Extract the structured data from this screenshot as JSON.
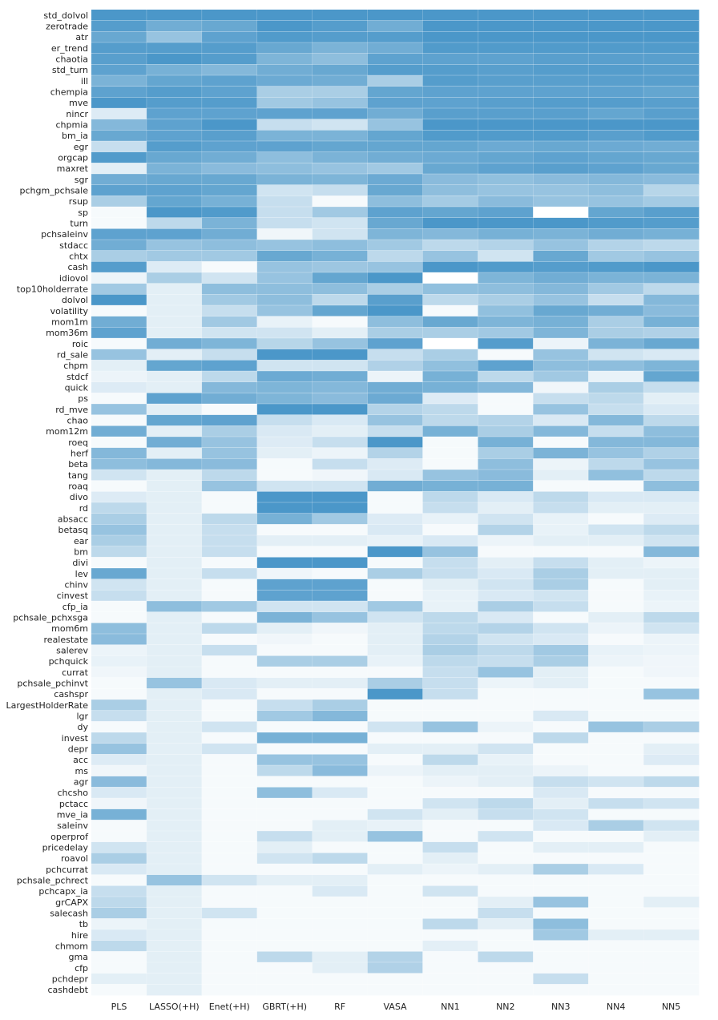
{
  "chart_data": {
    "type": "heatmap",
    "title": "",
    "xlabel": "",
    "ylabel": "",
    "colormap": {
      "low": "#ffffff",
      "high": "#4292c6"
    },
    "value_range": [
      0,
      1
    ],
    "columns": [
      "PLS",
      "LASSO(+H)",
      "Enet(+H)",
      "GBRT(+H)",
      "RF",
      "VASA",
      "NN1",
      "NN2",
      "NN3",
      "NN4",
      "NN5"
    ],
    "rows": [
      "std_dolvol",
      "zerotrade",
      "atr",
      "er_trend",
      "chaotia",
      "std_turn",
      "ill",
      "chempia",
      "mve",
      "nincr",
      "chpmia",
      "bm_ia",
      "egr",
      "orgcap",
      "maxret",
      "sgr",
      "pchgm_pchsale",
      "rsup",
      "sp",
      "turn",
      "pchsaleinv",
      "stdacc",
      "chtx",
      "cash",
      "idiovol",
      "top10holderrate",
      "dolvol",
      "volatility",
      "mom1m",
      "mom36m",
      "roic",
      "rd_sale",
      "chpm",
      "stdcf",
      "quick",
      "ps",
      "rd_mve",
      "chao",
      "mom12m",
      "roeq",
      "herf",
      "beta",
      "tang",
      "roaq",
      "divo",
      "rd",
      "absacc",
      "betasq",
      "ear",
      "bm",
      "divi",
      "lev",
      "chinv",
      "cinvest",
      "cfp_ia",
      "pchsale_pchxsga",
      "mom6m",
      "realestate",
      "salerev",
      "pchquick",
      "currat",
      "pchsale_pchinvt",
      "cashspr",
      "LargestHolderRate",
      "lgr",
      "dy",
      "invest",
      "depr",
      "acc",
      "ms",
      "agr",
      "chcsho",
      "pctacc",
      "mve_ia",
      "saleinv",
      "operprof",
      "pricedelay",
      "roavol",
      "pchcurrat",
      "pchsale_pchrect",
      "pchcapx_ia",
      "grCAPX",
      "salecash",
      "tb",
      "hire",
      "chmom",
      "gma",
      "cfp",
      "pchdepr",
      "cashdebt"
    ],
    "values": [
      [
        0.95,
        0.95,
        0.95,
        0.95,
        0.95,
        0.95,
        0.95,
        0.95,
        0.95,
        0.95,
        0.95
      ],
      [
        0.9,
        0.75,
        0.8,
        0.95,
        0.9,
        0.75,
        0.95,
        0.95,
        0.95,
        0.95,
        0.95
      ],
      [
        0.8,
        0.55,
        0.85,
        0.92,
        0.9,
        0.9,
        0.95,
        0.95,
        0.95,
        0.95,
        0.95
      ],
      [
        0.9,
        0.9,
        0.9,
        0.8,
        0.7,
        0.75,
        0.92,
        0.92,
        0.92,
        0.92,
        0.92
      ],
      [
        0.88,
        0.95,
        0.9,
        0.68,
        0.6,
        0.85,
        0.85,
        0.85,
        0.88,
        0.88,
        0.88
      ],
      [
        0.85,
        0.72,
        0.65,
        0.75,
        0.8,
        0.9,
        0.9,
        0.88,
        0.9,
        0.9,
        0.88
      ],
      [
        0.7,
        0.82,
        0.85,
        0.78,
        0.75,
        0.45,
        0.9,
        0.88,
        0.88,
        0.88,
        0.88
      ],
      [
        0.85,
        0.9,
        0.85,
        0.45,
        0.45,
        0.82,
        0.85,
        0.85,
        0.85,
        0.85,
        0.82
      ],
      [
        0.95,
        0.9,
        0.9,
        0.5,
        0.55,
        0.85,
        0.85,
        0.88,
        0.9,
        0.9,
        0.88
      ],
      [
        0.18,
        0.85,
        0.85,
        0.85,
        0.85,
        0.75,
        0.88,
        0.88,
        0.88,
        0.82,
        0.88
      ],
      [
        0.65,
        0.85,
        0.95,
        0.3,
        0.25,
        0.55,
        0.95,
        0.95,
        0.95,
        0.95,
        0.95
      ],
      [
        0.8,
        0.85,
        0.88,
        0.7,
        0.7,
        0.82,
        0.92,
        0.92,
        0.92,
        0.88,
        0.92
      ],
      [
        0.3,
        0.9,
        0.85,
        0.85,
        0.82,
        0.82,
        0.82,
        0.78,
        0.8,
        0.78,
        0.75
      ],
      [
        0.92,
        0.8,
        0.75,
        0.6,
        0.7,
        0.75,
        0.78,
        0.82,
        0.85,
        0.82,
        0.8
      ],
      [
        0.15,
        0.7,
        0.62,
        0.6,
        0.55,
        0.5,
        0.8,
        0.85,
        0.88,
        0.85,
        0.8
      ],
      [
        0.75,
        0.8,
        0.8,
        0.7,
        0.68,
        0.78,
        0.62,
        0.58,
        0.62,
        0.65,
        0.62
      ],
      [
        0.85,
        0.85,
        0.82,
        0.25,
        0.3,
        0.8,
        0.6,
        0.55,
        0.55,
        0.6,
        0.38
      ],
      [
        0.45,
        0.82,
        0.72,
        0.3,
        0.05,
        0.6,
        0.48,
        0.62,
        0.55,
        0.55,
        0.48
      ],
      [
        0.05,
        0.95,
        0.92,
        0.3,
        0.5,
        0.85,
        0.82,
        0.85,
        0.0,
        0.82,
        0.88
      ],
      [
        0.05,
        0.35,
        0.7,
        0.3,
        0.25,
        0.8,
        0.95,
        0.95,
        0.95,
        0.92,
        0.9
      ],
      [
        0.85,
        0.85,
        0.75,
        0.08,
        0.25,
        0.68,
        0.65,
        0.72,
        0.7,
        0.75,
        0.72
      ],
      [
        0.75,
        0.55,
        0.6,
        0.55,
        0.6,
        0.5,
        0.35,
        0.4,
        0.55,
        0.4,
        0.35
      ],
      [
        0.45,
        0.5,
        0.5,
        0.8,
        0.72,
        0.35,
        0.55,
        0.25,
        0.8,
        0.5,
        0.55
      ],
      [
        0.9,
        0.18,
        0.05,
        0.55,
        0.52,
        0.55,
        0.95,
        0.92,
        0.9,
        0.92,
        0.95
      ],
      [
        0.1,
        0.45,
        0.25,
        0.55,
        0.82,
        0.95,
        0.0,
        0.68,
        0.75,
        0.7,
        0.7
      ],
      [
        0.5,
        0.15,
        0.6,
        0.6,
        0.6,
        0.45,
        0.58,
        0.6,
        0.65,
        0.5,
        0.35
      ],
      [
        0.95,
        0.15,
        0.5,
        0.6,
        0.35,
        0.88,
        0.35,
        0.45,
        0.55,
        0.3,
        0.65
      ],
      [
        0.05,
        0.15,
        0.3,
        0.55,
        0.82,
        0.95,
        0.05,
        0.58,
        0.8,
        0.75,
        0.62
      ],
      [
        0.75,
        0.15,
        0.5,
        0.12,
        0.05,
        0.6,
        0.8,
        0.68,
        0.72,
        0.45,
        0.72
      ],
      [
        0.85,
        0.15,
        0.25,
        0.25,
        0.15,
        0.45,
        0.45,
        0.5,
        0.68,
        0.45,
        0.42
      ],
      [
        0.05,
        0.75,
        0.68,
        0.38,
        0.55,
        0.85,
        0.0,
        0.9,
        0.1,
        0.7,
        0.8
      ],
      [
        0.55,
        0.15,
        0.3,
        0.95,
        0.95,
        0.3,
        0.45,
        0.05,
        0.55,
        0.25,
        0.2
      ],
      [
        0.15,
        0.82,
        0.85,
        0.25,
        0.25,
        0.42,
        0.58,
        0.85,
        0.6,
        0.6,
        0.68
      ],
      [
        0.1,
        0.15,
        0.35,
        0.78,
        0.75,
        0.1,
        0.72,
        0.35,
        0.5,
        0.12,
        0.82
      ],
      [
        0.18,
        0.15,
        0.65,
        0.68,
        0.65,
        0.75,
        0.72,
        0.65,
        0.08,
        0.45,
        0.3
      ],
      [
        0.05,
        0.85,
        0.75,
        0.68,
        0.62,
        0.78,
        0.18,
        0.05,
        0.3,
        0.35,
        0.15
      ],
      [
        0.55,
        0.15,
        0.05,
        0.95,
        0.95,
        0.4,
        0.35,
        0.05,
        0.55,
        0.3,
        0.2
      ],
      [
        0.05,
        0.82,
        0.85,
        0.3,
        0.2,
        0.55,
        0.35,
        0.4,
        0.2,
        0.65,
        0.35
      ],
      [
        0.75,
        0.15,
        0.45,
        0.2,
        0.15,
        0.3,
        0.72,
        0.45,
        0.65,
        0.3,
        0.6
      ],
      [
        0.05,
        0.75,
        0.55,
        0.18,
        0.3,
        0.95,
        0.05,
        0.72,
        0.05,
        0.65,
        0.65
      ],
      [
        0.65,
        0.15,
        0.55,
        0.15,
        0.1,
        0.4,
        0.05,
        0.45,
        0.7,
        0.55,
        0.42
      ],
      [
        0.6,
        0.65,
        0.62,
        0.05,
        0.3,
        0.18,
        0.05,
        0.6,
        0.1,
        0.35,
        0.55
      ],
      [
        0.25,
        0.15,
        0.35,
        0.05,
        0.08,
        0.2,
        0.55,
        0.62,
        0.15,
        0.58,
        0.35
      ],
      [
        0.05,
        0.15,
        0.55,
        0.25,
        0.25,
        0.75,
        0.72,
        0.72,
        0.05,
        0.05,
        0.6
      ],
      [
        0.18,
        0.15,
        0.05,
        0.95,
        0.95,
        0.05,
        0.35,
        0.2,
        0.35,
        0.2,
        0.2
      ],
      [
        0.35,
        0.15,
        0.05,
        0.95,
        0.95,
        0.05,
        0.3,
        0.15,
        0.3,
        0.15,
        0.15
      ],
      [
        0.45,
        0.15,
        0.35,
        0.72,
        0.5,
        0.18,
        0.12,
        0.25,
        0.12,
        0.05,
        0.18
      ],
      [
        0.55,
        0.15,
        0.3,
        0.05,
        0.05,
        0.2,
        0.05,
        0.4,
        0.12,
        0.25,
        0.35
      ],
      [
        0.45,
        0.15,
        0.3,
        0.15,
        0.15,
        0.12,
        0.2,
        0.1,
        0.15,
        0.15,
        0.25
      ],
      [
        0.35,
        0.15,
        0.3,
        0.05,
        0.05,
        0.95,
        0.55,
        0.05,
        0.05,
        0.05,
        0.65
      ],
      [
        0.05,
        0.15,
        0.05,
        0.95,
        0.95,
        0.05,
        0.3,
        0.15,
        0.3,
        0.15,
        0.1
      ],
      [
        0.8,
        0.15,
        0.3,
        0.08,
        0.05,
        0.45,
        0.3,
        0.2,
        0.45,
        0.15,
        0.15
      ],
      [
        0.25,
        0.15,
        0.05,
        0.85,
        0.85,
        0.05,
        0.15,
        0.25,
        0.45,
        0.05,
        0.15
      ],
      [
        0.3,
        0.15,
        0.05,
        0.85,
        0.85,
        0.05,
        0.12,
        0.2,
        0.25,
        0.05,
        0.12
      ],
      [
        0.05,
        0.6,
        0.5,
        0.25,
        0.25,
        0.5,
        0.12,
        0.45,
        0.3,
        0.05,
        0.1
      ],
      [
        0.05,
        0.15,
        0.05,
        0.7,
        0.55,
        0.25,
        0.35,
        0.2,
        0.05,
        0.15,
        0.35
      ],
      [
        0.6,
        0.15,
        0.35,
        0.15,
        0.08,
        0.15,
        0.35,
        0.4,
        0.25,
        0.1,
        0.25
      ],
      [
        0.62,
        0.15,
        0.05,
        0.08,
        0.05,
        0.15,
        0.4,
        0.25,
        0.2,
        0.05,
        0.1
      ],
      [
        0.1,
        0.15,
        0.3,
        0.05,
        0.05,
        0.15,
        0.45,
        0.35,
        0.5,
        0.12,
        0.1
      ],
      [
        0.12,
        0.15,
        0.05,
        0.45,
        0.45,
        0.12,
        0.35,
        0.3,
        0.45,
        0.1,
        0.08
      ],
      [
        0.08,
        0.15,
        0.05,
        0.05,
        0.05,
        0.05,
        0.3,
        0.55,
        0.15,
        0.05,
        0.08
      ],
      [
        0.05,
        0.55,
        0.2,
        0.15,
        0.15,
        0.45,
        0.3,
        0.1,
        0.15,
        0.05,
        0.05
      ],
      [
        0.05,
        0.15,
        0.2,
        0.05,
        0.05,
        0.95,
        0.3,
        0.05,
        0.05,
        0.05,
        0.55
      ],
      [
        0.45,
        0.15,
        0.05,
        0.3,
        0.45,
        0.05,
        0.05,
        0.05,
        0.05,
        0.05,
        0.05
      ],
      [
        0.3,
        0.15,
        0.05,
        0.5,
        0.65,
        0.05,
        0.05,
        0.05,
        0.2,
        0.05,
        0.05
      ],
      [
        0.05,
        0.15,
        0.25,
        0.05,
        0.05,
        0.25,
        0.55,
        0.1,
        0.05,
        0.55,
        0.45
      ],
      [
        0.35,
        0.15,
        0.05,
        0.72,
        0.72,
        0.05,
        0.05,
        0.05,
        0.35,
        0.05,
        0.05
      ],
      [
        0.55,
        0.15,
        0.25,
        0.05,
        0.05,
        0.15,
        0.15,
        0.25,
        0.05,
        0.05,
        0.15
      ],
      [
        0.18,
        0.15,
        0.05,
        0.55,
        0.55,
        0.05,
        0.35,
        0.12,
        0.05,
        0.05,
        0.18
      ],
      [
        0.08,
        0.15,
        0.05,
        0.35,
        0.62,
        0.1,
        0.15,
        0.15,
        0.1,
        0.05,
        0.05
      ],
      [
        0.62,
        0.15,
        0.05,
        0.05,
        0.05,
        0.05,
        0.1,
        0.15,
        0.3,
        0.25,
        0.35
      ],
      [
        0.2,
        0.15,
        0.05,
        0.6,
        0.2,
        0.05,
        0.05,
        0.05,
        0.2,
        0.05,
        0.05
      ],
      [
        0.08,
        0.15,
        0.05,
        0.05,
        0.05,
        0.05,
        0.25,
        0.35,
        0.15,
        0.3,
        0.25
      ],
      [
        0.72,
        0.15,
        0.05,
        0.05,
        0.05,
        0.25,
        0.15,
        0.3,
        0.25,
        0.05,
        0.05
      ],
      [
        0.05,
        0.15,
        0.05,
        0.05,
        0.15,
        0.12,
        0.05,
        0.05,
        0.2,
        0.45,
        0.25
      ],
      [
        0.05,
        0.15,
        0.05,
        0.3,
        0.15,
        0.55,
        0.05,
        0.25,
        0.05,
        0.05,
        0.15
      ],
      [
        0.25,
        0.15,
        0.05,
        0.15,
        0.05,
        0.05,
        0.3,
        0.05,
        0.15,
        0.15,
        0.05
      ],
      [
        0.45,
        0.15,
        0.05,
        0.25,
        0.35,
        0.05,
        0.15,
        0.05,
        0.05,
        0.05,
        0.05
      ],
      [
        0.2,
        0.15,
        0.05,
        0.05,
        0.05,
        0.15,
        0.1,
        0.15,
        0.45,
        0.2,
        0.05
      ],
      [
        0.05,
        0.55,
        0.25,
        0.15,
        0.15,
        0.05,
        0.05,
        0.05,
        0.05,
        0.05,
        0.05
      ],
      [
        0.3,
        0.15,
        0.05,
        0.05,
        0.2,
        0.05,
        0.25,
        0.05,
        0.05,
        0.05,
        0.05
      ],
      [
        0.35,
        0.15,
        0.05,
        0.05,
        0.05,
        0.05,
        0.05,
        0.15,
        0.55,
        0.05,
        0.15
      ],
      [
        0.45,
        0.15,
        0.25,
        0.05,
        0.05,
        0.05,
        0.05,
        0.3,
        0.05,
        0.05,
        0.05
      ],
      [
        0.1,
        0.15,
        0.05,
        0.05,
        0.05,
        0.05,
        0.35,
        0.15,
        0.6,
        0.05,
        0.05
      ],
      [
        0.2,
        0.15,
        0.05,
        0.05,
        0.05,
        0.05,
        0.05,
        0.05,
        0.5,
        0.15,
        0.15
      ],
      [
        0.35,
        0.15,
        0.05,
        0.05,
        0.05,
        0.05,
        0.15,
        0.05,
        0.05,
        0.05,
        0.05
      ],
      [
        0.05,
        0.15,
        0.05,
        0.35,
        0.15,
        0.4,
        0.05,
        0.35,
        0.05,
        0.05,
        0.05
      ],
      [
        0.05,
        0.15,
        0.05,
        0.05,
        0.15,
        0.42,
        0.05,
        0.05,
        0.05,
        0.05,
        0.05
      ],
      [
        0.15,
        0.15,
        0.05,
        0.05,
        0.05,
        0.05,
        0.05,
        0.05,
        0.3,
        0.05,
        0.05
      ],
      [
        0.05,
        0.15,
        0.05,
        0.05,
        0.05,
        0.05,
        0.05,
        0.05,
        0.05,
        0.05,
        0.05
      ]
    ]
  }
}
